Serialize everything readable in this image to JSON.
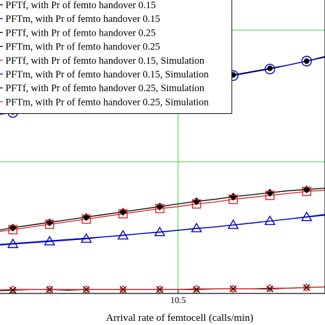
{
  "chart_data": {
    "type": "line",
    "title": "",
    "xlabel": "Arrival rate of femtocell (calls/min)",
    "ylabel": "",
    "x_tick_labels": [
      "10.5"
    ],
    "x_tick_values": [
      10.5
    ],
    "xlim": [
      10.0,
      10.9
    ],
    "ylim": [
      0.0,
      0.45
    ],
    "grid": true,
    "legend": {
      "position": "top-left"
    },
    "series": [
      {
        "name": "PFTf, with Pr of femto handover 0.15",
        "color": "#000000",
        "marker": "diamond",
        "line": "solid",
        "x": [
          10.0,
          10.05,
          10.1,
          10.15,
          10.2,
          10.25,
          10.3,
          10.35,
          10.4,
          10.45,
          10.5,
          10.55,
          10.6,
          10.65,
          10.7,
          10.75,
          10.8,
          10.85,
          10.9
        ],
        "y": [
          0.095,
          0.1,
          0.104,
          0.108,
          0.112,
          0.116,
          0.12,
          0.124,
          0.128,
          0.132,
          0.136,
          0.14,
          0.143,
          0.147,
          0.15,
          0.153,
          0.156,
          0.158,
          0.16
        ]
      },
      {
        "name": "PFTm, with Pr of femto handover 0.15",
        "color": "#0000cc",
        "marker": "none",
        "line": "solid",
        "x": [
          10.0,
          10.1,
          10.2,
          10.3,
          10.4,
          10.5,
          10.6,
          10.7,
          10.8,
          10.9
        ],
        "y": [
          0.074,
          0.078,
          0.082,
          0.086,
          0.091,
          0.096,
          0.101,
          0.107,
          0.113,
          0.12
        ]
      },
      {
        "name": "PFTf, with Pr of femto handover 0.25",
        "color": "#000000",
        "marker": "dot",
        "line": "solid",
        "x": [
          10.0,
          10.05,
          10.1,
          10.15,
          10.2,
          10.25,
          10.3,
          10.35,
          10.4,
          10.45,
          10.5,
          10.55,
          10.6,
          10.65,
          10.7,
          10.75,
          10.8,
          10.85,
          10.9
        ],
        "y": [
          0.272,
          0.276,
          0.28,
          0.284,
          0.288,
          0.292,
          0.297,
          0.302,
          0.307,
          0.312,
          0.317,
          0.322,
          0.327,
          0.332,
          0.337,
          0.342,
          0.347,
          0.353,
          0.36
        ]
      },
      {
        "name": "PFTm, with Pr of femto handover 0.25",
        "color": "#000000",
        "marker": "x",
        "line": "solid",
        "x": [
          10.0,
          10.05,
          10.1,
          10.15,
          10.2,
          10.25,
          10.3,
          10.35,
          10.4,
          10.45,
          10.5,
          10.55,
          10.6,
          10.65,
          10.7,
          10.75,
          10.8,
          10.85,
          10.9
        ],
        "y": [
          0.004,
          0.005,
          0.006,
          0.006,
          0.005,
          0.006,
          0.006,
          0.006,
          0.006,
          0.006,
          0.006,
          0.006,
          0.007,
          0.007,
          0.007,
          0.007,
          0.008,
          0.009,
          0.01
        ]
      },
      {
        "name": "PFTf, with Pr of femto handover 0.15, Simulation",
        "color": "#dd2222",
        "marker": "square",
        "line": "solid",
        "x": [
          10.0,
          10.05,
          10.1,
          10.15,
          10.2,
          10.25,
          10.3,
          10.35,
          10.4,
          10.45,
          10.5,
          10.55,
          10.6,
          10.65,
          10.7,
          10.75,
          10.8,
          10.85,
          10.9
        ],
        "y": [
          0.093,
          0.097,
          0.101,
          0.105,
          0.109,
          0.113,
          0.117,
          0.121,
          0.125,
          0.129,
          0.132,
          0.136,
          0.139,
          0.143,
          0.146,
          0.149,
          0.152,
          0.155,
          0.157
        ]
      },
      {
        "name": "PFTm, with Pr of femto handover 0.15, Simulation",
        "color": "#0000cc",
        "marker": "triangle",
        "line": "solid",
        "x": [
          10.0,
          10.05,
          10.1,
          10.15,
          10.2,
          10.25,
          10.3,
          10.35,
          10.4,
          10.45,
          10.5,
          10.55,
          10.6,
          10.65,
          10.7,
          10.75,
          10.8,
          10.85,
          10.9
        ],
        "y": [
          0.073,
          0.075,
          0.077,
          0.079,
          0.081,
          0.083,
          0.086,
          0.088,
          0.091,
          0.093,
          0.096,
          0.099,
          0.101,
          0.104,
          0.107,
          0.11,
          0.113,
          0.116,
          0.119
        ]
      },
      {
        "name": "PFTf, with Pr of femto handover 0.25, Simulation",
        "color": "#0000cc",
        "marker": "circle",
        "line": "solid",
        "x": [
          10.0,
          10.05,
          10.1,
          10.15,
          10.2,
          10.25,
          10.3,
          10.35,
          10.4,
          10.45,
          10.5,
          10.55,
          10.6,
          10.65,
          10.7,
          10.75,
          10.8,
          10.85,
          10.9
        ],
        "y": [
          0.271,
          0.275,
          0.279,
          0.283,
          0.287,
          0.291,
          0.296,
          0.301,
          0.306,
          0.311,
          0.316,
          0.321,
          0.326,
          0.331,
          0.336,
          0.341,
          0.347,
          0.353,
          0.359
        ]
      },
      {
        "name": "PFTm, with Pr of femto handover 0.25, Simulation",
        "color": "#dd2222",
        "marker": "diamond-open",
        "line": "solid",
        "x": [
          10.0,
          10.05,
          10.1,
          10.15,
          10.2,
          10.25,
          10.3,
          10.35,
          10.4,
          10.45,
          10.5,
          10.55,
          10.6,
          10.65,
          10.7,
          10.75,
          10.8,
          10.85,
          10.9
        ],
        "y": [
          0.005,
          0.006,
          0.006,
          0.006,
          0.006,
          0.006,
          0.006,
          0.006,
          0.006,
          0.006,
          0.006,
          0.007,
          0.007,
          0.007,
          0.007,
          0.008,
          0.008,
          0.009,
          0.01
        ]
      }
    ]
  }
}
